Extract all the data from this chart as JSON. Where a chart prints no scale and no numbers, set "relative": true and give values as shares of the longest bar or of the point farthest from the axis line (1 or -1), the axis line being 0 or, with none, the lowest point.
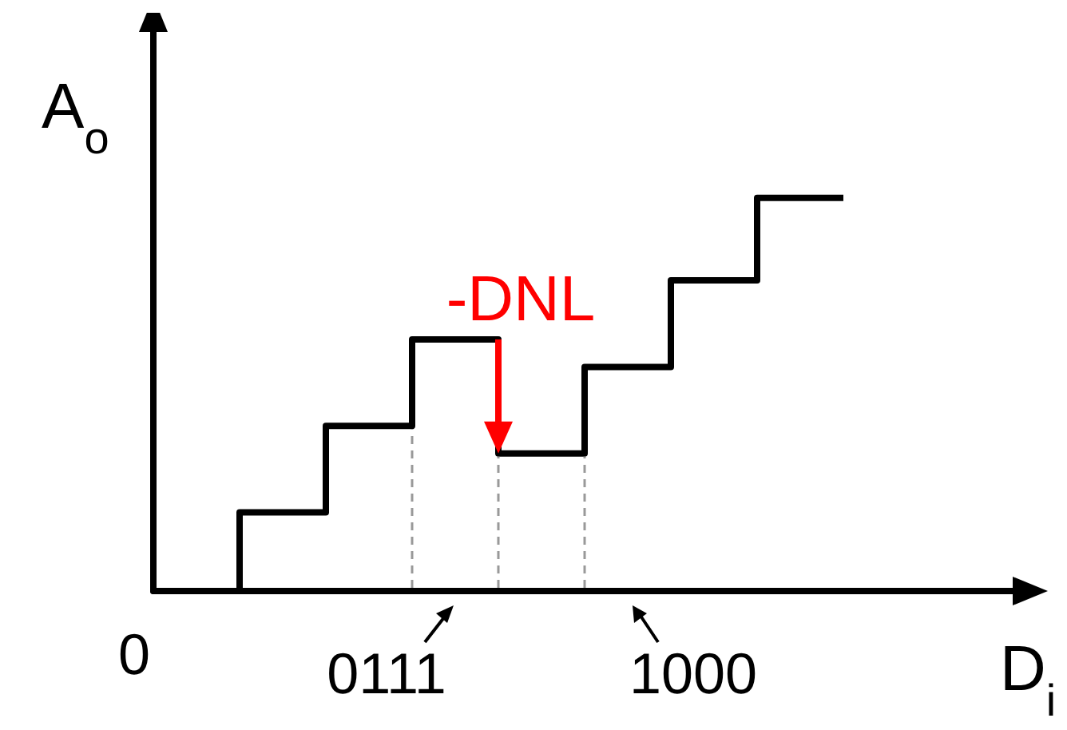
{
  "chart_data": {
    "type": "step",
    "relative": true,
    "xlabel": "D$_{i}$",
    "ylabel": "A$_{o}$",
    "categories": [
      null,
      null,
      null,
      null,
      null,
      null,
      null,
      null,
      null
    ],
    "series": [
      {
        "color": "#000000",
        "values": [
          0,
          0.2,
          0.42,
          0.64,
          0.35,
          0.57,
          0.79,
          1,
          1
        ]
      }
    ],
    "annotations": [
      "-DNL",
      "0",
      "0111",
      "1000"
    ],
    "marker": "none",
    "grid": false
  }
}
